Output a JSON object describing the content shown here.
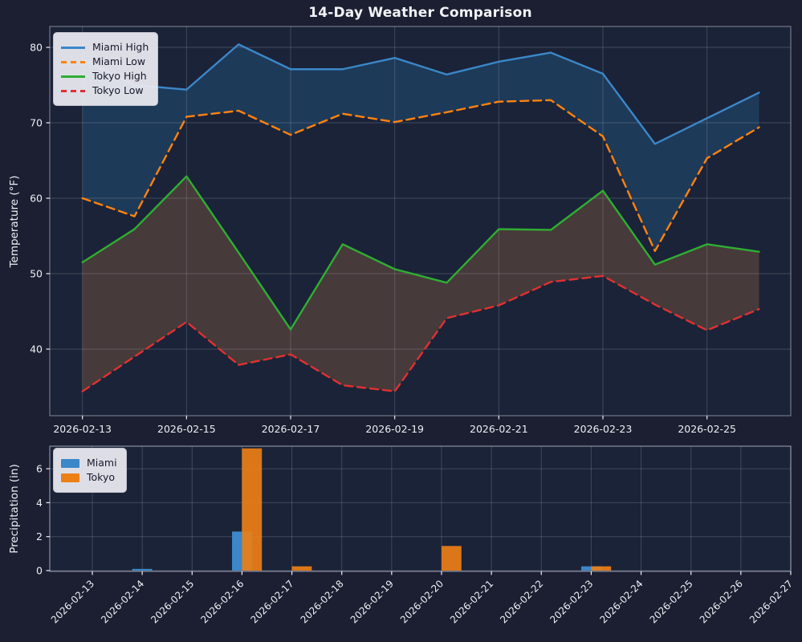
{
  "title": "14-Day Weather Comparison",
  "colors": {
    "figure_bg": "#1b1f31",
    "axes_bg": "#1b2338",
    "grid": "#aeb6c8",
    "text": "#edeff5",
    "spine": "#b9bfce",
    "legend_bg": "#e8e8ef",
    "legend_text": "#17182b",
    "miami_band": "#1e3a59",
    "tokyo_band": "#473a3a"
  },
  "chart_data": [
    {
      "type": "line",
      "title": "14-Day Weather Comparison",
      "ylabel": "Temperature (°F)",
      "x": [
        "2026-02-13",
        "2026-02-14",
        "2026-02-15",
        "2026-02-16",
        "2026-02-17",
        "2026-02-18",
        "2026-02-19",
        "2026-02-20",
        "2026-02-21",
        "2026-02-22",
        "2026-02-23",
        "2026-02-24",
        "2026-02-25",
        "2026-02-26"
      ],
      "xtick_labels": [
        "2026-02-13",
        "2026-02-15",
        "2026-02-17",
        "2026-02-19",
        "2026-02-21",
        "2026-02-23",
        "2026-02-25"
      ],
      "xtick_day_index": [
        0,
        2,
        4,
        6,
        8,
        10,
        12
      ],
      "ytick_values": [
        40,
        50,
        60,
        70,
        80
      ],
      "ylim": [
        31,
        83
      ],
      "grid": true,
      "legend_position": "upper left",
      "series": [
        {
          "name": "Miami High",
          "style": "solid",
          "color": "#3b87c8",
          "values": [
            78.4,
            75.0,
            74.4,
            80.4,
            77.1,
            77.1,
            78.6,
            76.4,
            78.1,
            79.3,
            76.5,
            67.2,
            70.6,
            74.0
          ]
        },
        {
          "name": "Miami Low",
          "style": "dashed",
          "color": "#ff830e",
          "values": [
            60.0,
            57.6,
            70.8,
            71.6,
            68.4,
            71.2,
            70.1,
            71.4,
            72.8,
            73.0,
            68.2,
            53.0,
            65.3,
            69.4
          ]
        },
        {
          "name": "Tokyo High",
          "style": "solid",
          "color": "#2fae32",
          "values": [
            51.5,
            55.9,
            62.9,
            52.8,
            42.6,
            53.9,
            50.6,
            48.8,
            55.9,
            55.8,
            61.0,
            51.2,
            53.9,
            52.9
          ]
        },
        {
          "name": "Tokyo Low",
          "style": "dashed",
          "color": "#e03131",
          "values": [
            34.4,
            39.0,
            43.6,
            37.9,
            39.3,
            35.2,
            34.4,
            44.1,
            45.8,
            48.9,
            49.7,
            45.9,
            42.5,
            45.3
          ]
        }
      ],
      "bands": [
        {
          "between": [
            0,
            1
          ],
          "color": "#1e3a59",
          "label": "miami-high-low-band"
        },
        {
          "between": [
            2,
            3
          ],
          "color": "#473a3a",
          "label": "tokyo-high-low-band"
        }
      ]
    },
    {
      "type": "bar",
      "ylabel": "Precipitation (in)",
      "x": [
        "2026-02-13",
        "2026-02-14",
        "2026-02-15",
        "2026-02-16",
        "2026-02-17",
        "2026-02-18",
        "2026-02-19",
        "2026-02-20",
        "2026-02-21",
        "2026-02-22",
        "2026-02-23",
        "2026-02-24",
        "2026-02-25",
        "2026-02-26"
      ],
      "xtick_labels": [
        "2026-02-13",
        "2026-02-14",
        "2026-02-15",
        "2026-02-16",
        "2026-02-17",
        "2026-02-18",
        "2026-02-19",
        "2026-02-20",
        "2026-02-21",
        "2026-02-22",
        "2026-02-23",
        "2026-02-24",
        "2026-02-25",
        "2026-02-26",
        "2026-02-27"
      ],
      "xtick_rotation": 45,
      "ytick_values": [
        0,
        2,
        4,
        6
      ],
      "ylim": [
        0,
        7.3
      ],
      "grid": true,
      "legend_position": "upper left",
      "series": [
        {
          "name": "Miami",
          "color": "#3b87c8",
          "values": [
            0,
            0.1,
            0,
            2.3,
            0,
            0,
            0,
            0,
            0,
            0,
            0.25,
            0,
            0,
            0
          ]
        },
        {
          "name": "Tokyo",
          "color": "#ec7f16",
          "values": [
            0,
            0,
            0,
            7.2,
            0.25,
            0,
            0,
            1.45,
            0,
            0,
            0.25,
            0,
            0,
            0
          ]
        }
      ]
    }
  ]
}
